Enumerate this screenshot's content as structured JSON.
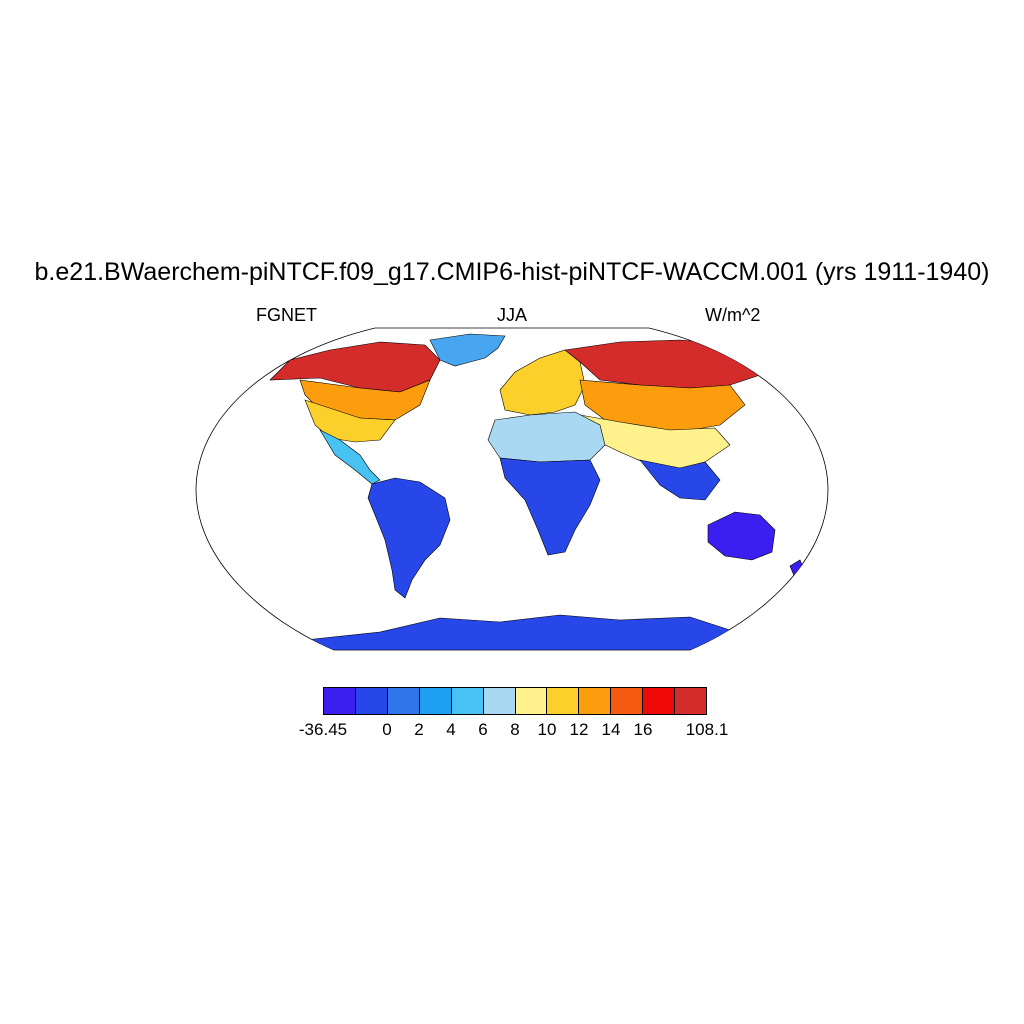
{
  "title": "b.e21.BWaerchem-piNTCF.f09_g17.CMIP6-hist-piNTCF-WACCM.001 (yrs 1911-1940)",
  "left_label": "FGNET",
  "center_label": "JJA",
  "right_label": "W/m^2",
  "legend": {
    "colors": [
      "#3b1ef0",
      "#2747e8",
      "#3076ea",
      "#1f9ff2",
      "#48c1f3",
      "#a9d9f2",
      "#fff18c",
      "#fcd02a",
      "#fb9d0d",
      "#f55a10",
      "#ef0a08",
      "#d42b2b"
    ],
    "labels": [
      "-36.45",
      "0",
      "2",
      "4",
      "6",
      "8",
      "10",
      "12",
      "14",
      "16",
      "108.1"
    ]
  },
  "ocean_color": "#ffffff",
  "coastline_color": "#000000"
}
